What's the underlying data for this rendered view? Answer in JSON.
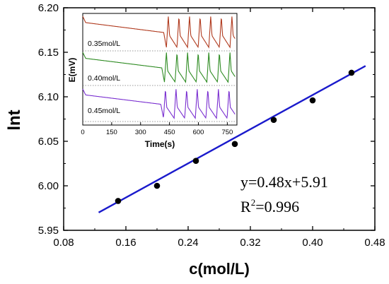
{
  "chart_data": [
    {
      "type": "scatter",
      "title": "",
      "xlabel": "c(mol/L)",
      "ylabel": "lnt",
      "xlim": [
        0.08,
        0.48
      ],
      "ylim": [
        5.95,
        6.2
      ],
      "x_ticks": [
        "0.08",
        "0.16",
        "0.24",
        "0.32",
        "0.40",
        "0.48"
      ],
      "y_ticks": [
        "5.95",
        "6.00",
        "6.05",
        "6.10",
        "6.15",
        "6.20"
      ],
      "grid": false,
      "series": [
        {
          "points": [
            {
              "x": 0.15,
              "y": 5.983
            },
            {
              "x": 0.2,
              "y": 6.0
            },
            {
              "x": 0.25,
              "y": 6.028
            },
            {
              "x": 0.3,
              "y": 6.047
            },
            {
              "x": 0.35,
              "y": 6.074
            },
            {
              "x": 0.4,
              "y": 6.096
            },
            {
              "x": 0.45,
              "y": 6.127
            }
          ],
          "color": "#000000"
        }
      ],
      "fit_line": {
        "slope": 0.48,
        "intercept": 5.91,
        "x_start": 0.125,
        "x_end": 0.468,
        "color": "#1a1acc"
      },
      "annotations": {
        "equation": "y=0.48x+5.91",
        "r2_prefix": "R",
        "r2_sup": "2",
        "r2_value": "=0.996"
      }
    },
    {
      "type": "line",
      "title": "",
      "xlabel": "Time(s)",
      "ylabel": "E(mV)",
      "xlim": [
        0,
        800
      ],
      "x_ticks": [
        "0",
        "150",
        "300",
        "450",
        "600",
        "750"
      ],
      "series": [
        {
          "label": "0.35mol/L",
          "color": "#b03a1e",
          "induction_end": 420,
          "period": 55
        },
        {
          "label": "0.40mol/L",
          "color": "#2e8b22",
          "induction_end": 410,
          "period": 55
        },
        {
          "label": "0.45mol/L",
          "color": "#7a2fd0",
          "induction_end": 405,
          "period": 55
        }
      ]
    }
  ]
}
